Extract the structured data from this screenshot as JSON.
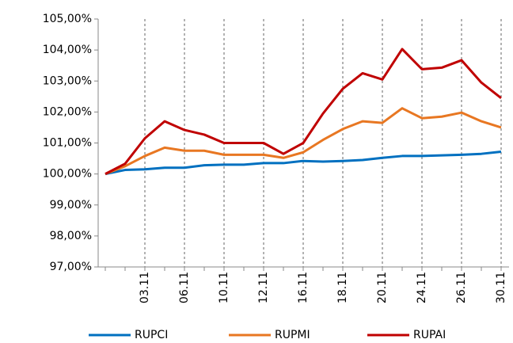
{
  "chart_data": {
    "type": "line",
    "categories": [
      null,
      null,
      "03.11",
      null,
      "06.11",
      null,
      "10.11",
      null,
      "12.11",
      null,
      "16.11",
      null,
      "18.11",
      null,
      "20.11",
      null,
      "24.11",
      null,
      "26.11",
      null,
      "30.11"
    ],
    "series": [
      {
        "name": "RUPCI",
        "color": "#0070c0",
        "values": [
          100.0,
          100.13,
          100.15,
          100.2,
          100.2,
          100.28,
          100.3,
          100.3,
          100.35,
          100.35,
          100.42,
          100.4,
          100.42,
          100.45,
          100.52,
          100.58,
          100.58,
          100.6,
          100.62,
          100.65,
          100.72
        ]
      },
      {
        "name": "RUPMI",
        "color": "#e87722",
        "values": [
          100.0,
          100.25,
          100.58,
          100.85,
          100.75,
          100.75,
          100.62,
          100.62,
          100.62,
          100.52,
          100.7,
          101.1,
          101.45,
          101.7,
          101.65,
          102.12,
          101.8,
          101.85,
          101.98,
          101.7,
          101.5
        ]
      },
      {
        "name": "RUPAI",
        "color": "#c00000",
        "values": [
          100.0,
          100.33,
          101.15,
          101.7,
          101.42,
          101.27,
          101.0,
          101.0,
          101.0,
          100.65,
          101.0,
          101.95,
          102.75,
          103.25,
          103.05,
          104.03,
          103.38,
          103.43,
          103.67,
          102.95,
          102.45
        ]
      }
    ],
    "ylim": [
      97,
      105
    ],
    "yticks": [
      {
        "value": 97,
        "label": "97,00%"
      },
      {
        "value": 98,
        "label": "98,00%"
      },
      {
        "value": 99,
        "label": "99,00%"
      },
      {
        "value": 100,
        "label": "100,00%"
      },
      {
        "value": 101,
        "label": "101,00%"
      },
      {
        "value": 102,
        "label": "102,00%"
      },
      {
        "value": 103,
        "label": "103,00%"
      },
      {
        "value": 104,
        "label": "104,00%"
      },
      {
        "value": 105,
        "label": "105,00%"
      }
    ],
    "legend": "bottom"
  }
}
